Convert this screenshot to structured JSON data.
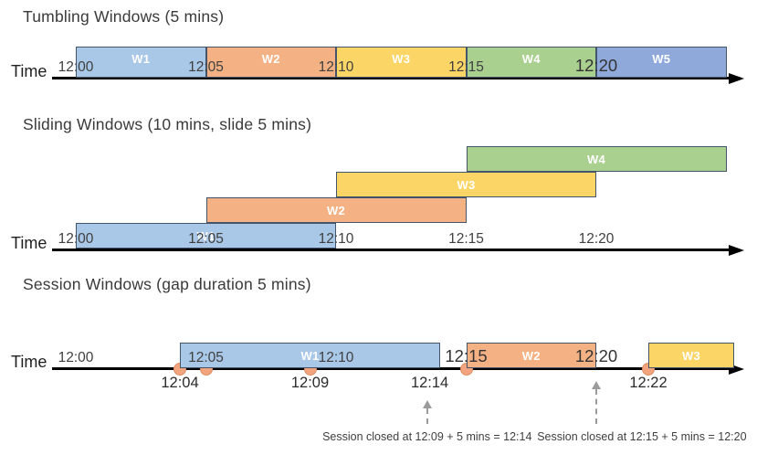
{
  "palette": {
    "blue": "#A9C7E7",
    "orange": "#F4B183",
    "yellow": "#FBD666",
    "green": "#A9D08E",
    "blue2": "#8FA9DB",
    "bar_border": "#44546A",
    "axis": "#000000",
    "dot_fill": "#F2A47E",
    "dot_border": "#DE8E61",
    "callout_gray": "#9B9B9B"
  },
  "diagram": {
    "sections": [
      {
        "title": "Tumbling Windows (5 mins)",
        "axis_label": "Time",
        "windows": [
          {
            "label": "W1",
            "start_min": 0,
            "end_min": 5,
            "color": "blue"
          },
          {
            "label": "W2",
            "start_min": 5,
            "end_min": 10,
            "color": "orange"
          },
          {
            "label": "W3",
            "start_min": 10,
            "end_min": 15,
            "color": "yellow"
          },
          {
            "label": "W4",
            "start_min": 15,
            "end_min": 20,
            "color": "green"
          },
          {
            "label": "W5",
            "start_min": 20,
            "end_min": 25,
            "color": "blue2"
          }
        ],
        "ticks": [
          {
            "label": "12:00",
            "min": 0
          },
          {
            "label": "12:05",
            "min": 5
          },
          {
            "label": "12:10",
            "min": 10
          },
          {
            "label": "12:15",
            "min": 15
          },
          {
            "label": "12:20",
            "min": 20,
            "emphasis": true
          }
        ]
      },
      {
        "title": "Sliding Windows (10 mins, slide 5 mins)",
        "axis_label": "Time",
        "windows": [
          {
            "label": "W1",
            "start_min": 0,
            "end_min": 10,
            "color": "blue",
            "row": 0
          },
          {
            "label": "W2",
            "start_min": 5,
            "end_min": 15,
            "color": "orange",
            "row": 1
          },
          {
            "label": "W3",
            "start_min": 10,
            "end_min": 20,
            "color": "yellow",
            "row": 2
          },
          {
            "label": "W4",
            "start_min": 15,
            "end_min": 25,
            "color": "green",
            "row": 3
          }
        ],
        "ticks": [
          {
            "label": "12:00",
            "min": 0
          },
          {
            "label": "12:05",
            "min": 5
          },
          {
            "label": "12:10",
            "min": 10
          },
          {
            "label": "12:15",
            "min": 15
          },
          {
            "label": "12:20",
            "min": 20
          }
        ]
      },
      {
        "title": "Session Windows (gap duration 5 mins)",
        "axis_label": "Time",
        "windows": [
          {
            "label": "W1",
            "start_min": 4,
            "end_min": 14,
            "color": "blue"
          },
          {
            "label": "W2",
            "start_min": 15,
            "end_min": 20,
            "color": "orange"
          },
          {
            "label": "W3",
            "start_min": 22,
            "end_min": 25.3,
            "color": "yellow"
          }
        ],
        "ticks": [
          {
            "label": "12:00",
            "min": 0
          },
          {
            "label": "12:05",
            "min": 5
          },
          {
            "label": "12:10",
            "min": 10
          },
          {
            "label": "12:15",
            "min": 15,
            "emphasis": true
          },
          {
            "label": "12:20",
            "min": 20,
            "emphasis": true
          }
        ],
        "event_labels": [
          {
            "label": "12:04",
            "min": 4
          },
          {
            "label": "12:09",
            "min": 9
          },
          {
            "label": "12:14",
            "min": 13.6
          },
          {
            "label": "12:22",
            "min": 22
          }
        ],
        "events_min": [
          4,
          5,
          9,
          15,
          22
        ],
        "callouts": [
          {
            "text": "Session closed at 12:09 + 5 mins = 12:14",
            "arrow_min": 13.5,
            "text_min": 13.5
          },
          {
            "text": "Session closed at 12:15 + 5 mins = 12:20",
            "arrow_min": 20,
            "text_min": 21.75
          }
        ]
      }
    ]
  }
}
